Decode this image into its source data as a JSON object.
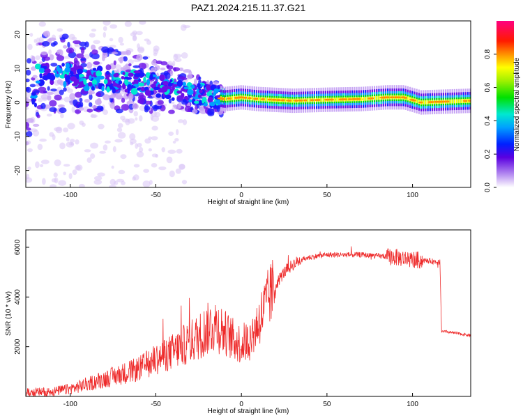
{
  "title": "PAZ1.2024.215.11.37.G21",
  "chart_data": [
    {
      "type": "heatmap",
      "xlabel": "Height of straight line (km)",
      "ylabel": "Frequency (Hz)",
      "xlim": [
        -126,
        134
      ],
      "ylim": [
        -25,
        24
      ],
      "xticks": [
        "-100",
        "-50",
        "0",
        "50",
        "100"
      ],
      "yticks": [
        "-20",
        "-10",
        "0",
        "10",
        "20"
      ],
      "grid": false,
      "colorbar": {
        "label": "Normalized spectral amplitude",
        "range": [
          0,
          1
        ],
        "ticks": [
          "0.0",
          "0.2",
          "0.4",
          "0.6",
          "0.8"
        ]
      },
      "ridge": [
        {
          "x": -120,
          "y": 8
        },
        {
          "x": -110,
          "y": 9
        },
        {
          "x": -100,
          "y": 8
        },
        {
          "x": -90,
          "y": 7
        },
        {
          "x": -80,
          "y": 7
        },
        {
          "x": -70,
          "y": 6
        },
        {
          "x": -60,
          "y": 6
        },
        {
          "x": -50,
          "y": 5
        },
        {
          "x": -40,
          "y": 4
        },
        {
          "x": -30,
          "y": 3
        },
        {
          "x": -20,
          "y": 2
        },
        {
          "x": -10,
          "y": 1
        },
        {
          "x": 0,
          "y": 1.5
        },
        {
          "x": 10,
          "y": 1
        },
        {
          "x": 30,
          "y": 0.5
        },
        {
          "x": 50,
          "y": 0.8
        },
        {
          "x": 70,
          "y": 1
        },
        {
          "x": 85,
          "y": 1.5
        },
        {
          "x": 95,
          "y": 1.5
        },
        {
          "x": 105,
          "y": 0
        },
        {
          "x": 134,
          "y": 0.5
        }
      ]
    },
    {
      "type": "line",
      "xlabel": "Height of straight line (km)",
      "ylabel": "SNR (10 * v/v)",
      "xlim": [
        -126,
        134
      ],
      "ylim": [
        0,
        6700
      ],
      "xticks": [
        "-100",
        "-50",
        "0",
        "50",
        "100"
      ],
      "yticks": [
        "2000",
        "4000",
        "6000"
      ],
      "grid": false,
      "series": [
        {
          "color": "#ee2a2a",
          "x": [
            -126,
            -110,
            -100,
            -90,
            -80,
            -70,
            -60,
            -50,
            -40,
            -35,
            -30,
            -25,
            -20,
            -15,
            -10,
            -5,
            0,
            5,
            10,
            15,
            20,
            25,
            30,
            35,
            40,
            50,
            60,
            70,
            80,
            90,
            100,
            110,
            116,
            117,
            120,
            134
          ],
          "y": [
            150,
            200,
            300,
            500,
            700,
            900,
            1100,
            1500,
            1800,
            2000,
            2200,
            2400,
            2700,
            2900,
            2600,
            2300,
            2100,
            2300,
            3000,
            3800,
            4500,
            5000,
            5300,
            5500,
            5600,
            5700,
            5700,
            5700,
            5650,
            5600,
            5500,
            5450,
            5400,
            2600,
            2600,
            2450
          ]
        }
      ]
    }
  ]
}
